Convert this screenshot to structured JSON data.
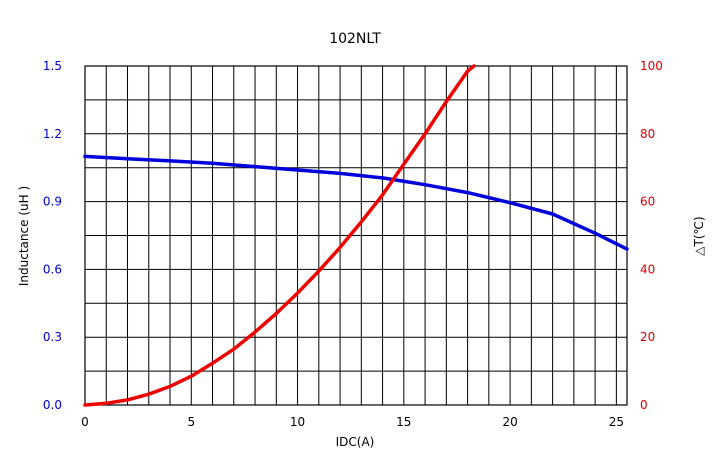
{
  "chart_data": {
    "type": "line",
    "title": "102NLT",
    "xlabel": "IDC(A)",
    "ylabel_left": "Inductance    (uH )",
    "ylabel_right": "△T(℃)",
    "xlim": [
      0,
      25.5
    ],
    "ylim_left": [
      0.0,
      1.5
    ],
    "ylim_right": [
      0,
      100
    ],
    "x_ticks": [
      "0",
      "5",
      "10",
      "15",
      "20",
      "25"
    ],
    "y_left_ticks": [
      "0.0",
      "0.3",
      "0.6",
      "0.9",
      "1.2",
      "1.5"
    ],
    "y_right_ticks": [
      "0",
      "20",
      "40",
      "60",
      "80",
      "100"
    ],
    "grid": true,
    "colors": {
      "inductance": "#0000dd",
      "temperature": "#ee0000",
      "left_axis_text": "#0000cc",
      "right_axis_text": "#dd0000"
    },
    "series": [
      {
        "axis": "left",
        "x": [
          0,
          2,
          4,
          6,
          8,
          10,
          12,
          14,
          16,
          18,
          20,
          22,
          24,
          25.5
        ],
        "values": [
          1.1,
          1.09,
          1.08,
          1.07,
          1.055,
          1.04,
          1.025,
          1.005,
          0.975,
          0.94,
          0.895,
          0.845,
          0.76,
          0.69
        ]
      },
      {
        "axis": "right",
        "x": [
          0,
          1,
          2,
          3,
          4,
          5,
          6,
          7,
          8,
          9,
          10,
          11,
          12,
          13,
          14,
          15,
          16,
          17,
          18,
          18.3
        ],
        "values": [
          0,
          0.5,
          1.5,
          3.2,
          5.5,
          8.5,
          12.3,
          16.5,
          21.5,
          27,
          33,
          39.5,
          46.5,
          54,
          62,
          71,
          80,
          89.5,
          98.5,
          100
        ]
      }
    ]
  }
}
